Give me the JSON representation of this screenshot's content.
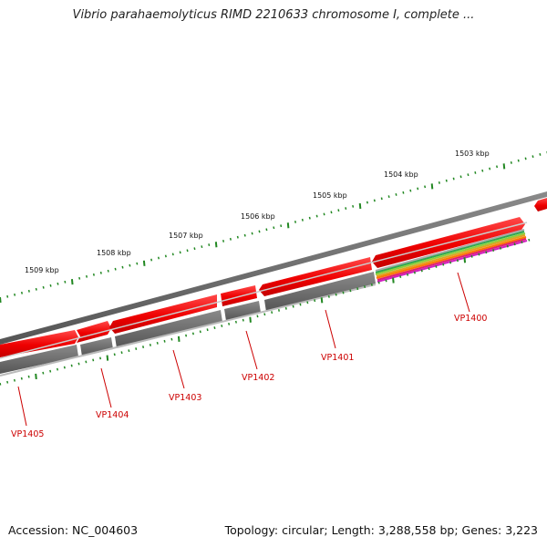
{
  "title": "Vibrio parahaemolyticus RIMD 2210633 chromosome I, complete ...",
  "footer": {
    "accession": "Accession: NC_004603",
    "summary": "Topology: circular; Length: 3,288,558 bp; Genes: 3,223"
  },
  "colors": {
    "backbone": "#7a7a7a",
    "gene_forward": "#ee1111",
    "cds_feature": "#6a6a6a",
    "tick": "#228822",
    "label": "#cc0000"
  },
  "ruler": {
    "units": "kbp",
    "labels": [
      "1503 kbp",
      "1504 kbp",
      "1505 kbp",
      "1506 kbp",
      "1507 kbp",
      "1508 kbp",
      "1509 kbp"
    ]
  },
  "genes": [
    {
      "label": "VP1400"
    },
    {
      "label": "VP1401"
    },
    {
      "label": "VP1402"
    },
    {
      "label": "VP1403"
    },
    {
      "label": "VP1404"
    },
    {
      "label": "VP1405"
    }
  ]
}
